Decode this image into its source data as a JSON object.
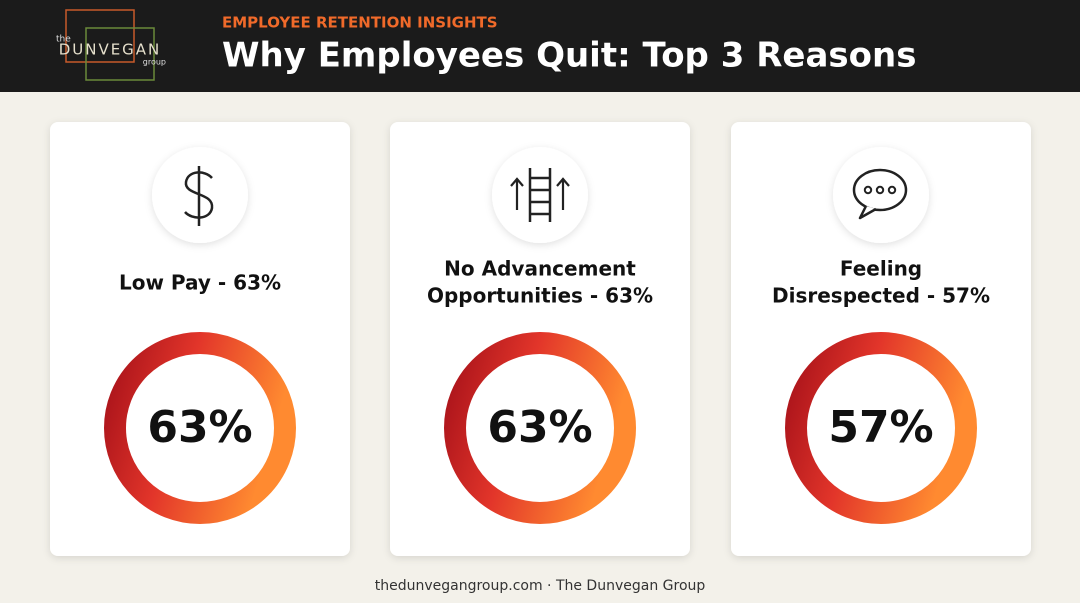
{
  "logo": {
    "top": "the",
    "name": "DUNVEGAN",
    "bottom": "group"
  },
  "header": {
    "kicker": "EMPLOYEE RETENTION INSIGHTS",
    "title": "Why Employees Quit: Top 3 Reasons"
  },
  "cards": [
    {
      "title_lines": [
        "Low Pay - 63%"
      ],
      "center": "63%"
    },
    {
      "title_lines": [
        "No Advancement",
        "Opportunities - 63%"
      ],
      "center": "63%"
    },
    {
      "title_lines": [
        "Feeling",
        "Disrespected - 57%"
      ],
      "center": "57%"
    }
  ],
  "footer": "thedunvegangroup.com · The Dunvegan Group"
}
